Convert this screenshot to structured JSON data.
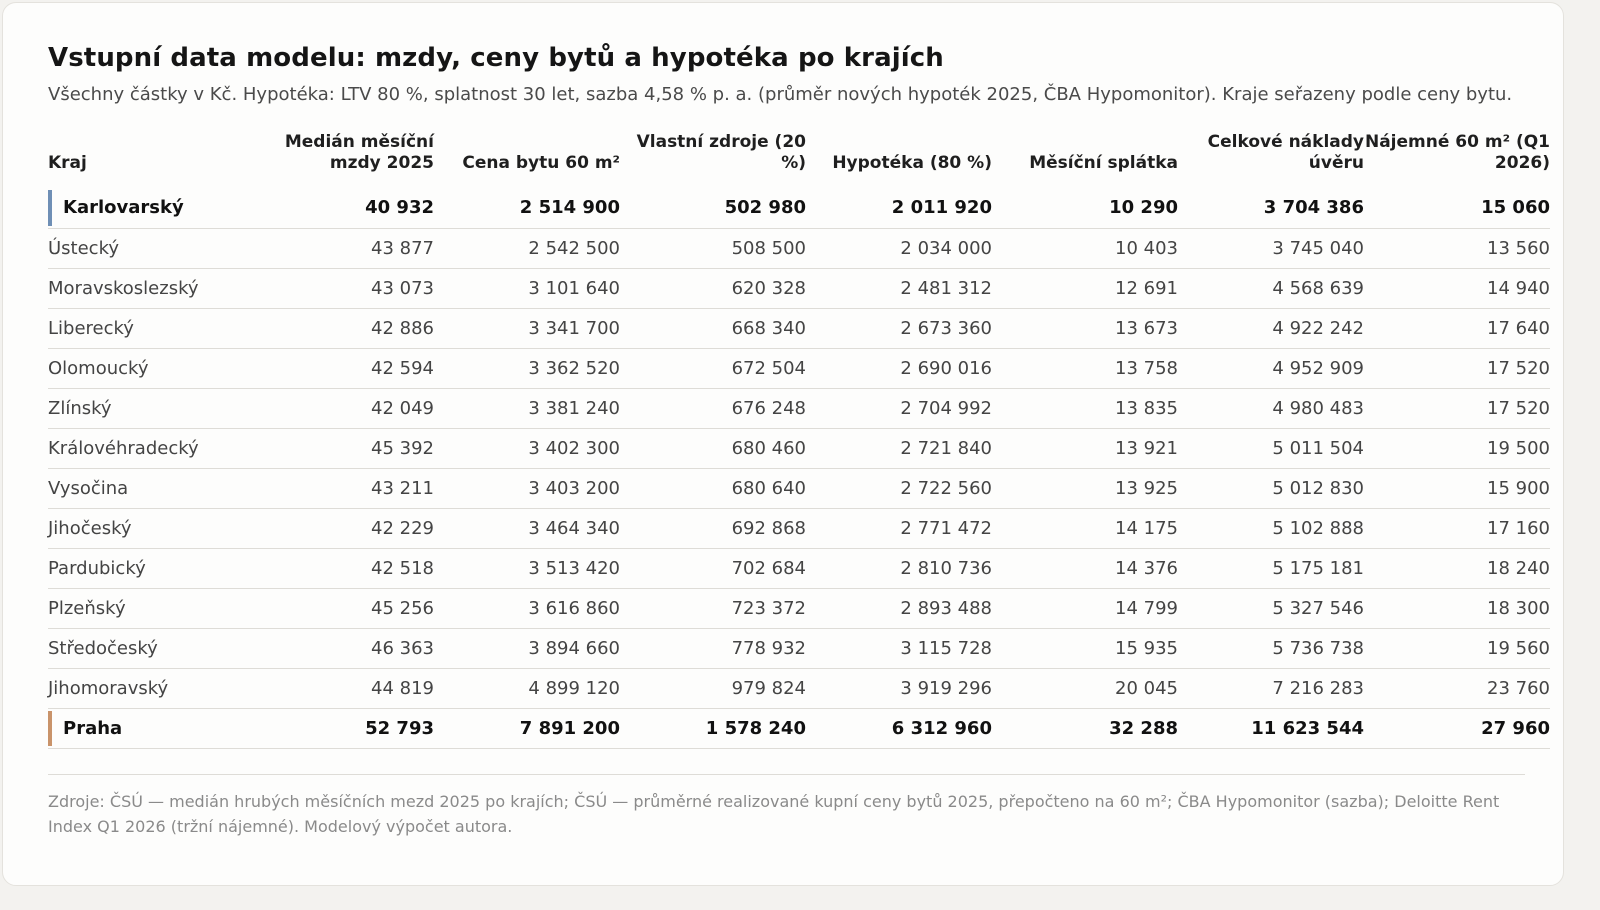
{
  "title": "Vstupní data modelu: mzdy, ceny bytů a hypotéka po krajích",
  "subtitle": "Všechny částky v Kč. Hypotéka: LTV 80 %, splatnost 30 let, sazba 4,58 % p. a. (průměr nových hypoték 2025, ČBA Hypomonitor). Kraje seřazeny podle ceny bytu.",
  "colors": {
    "accent_low": "#6f8fb5",
    "accent_high": "#c9936a"
  },
  "table": {
    "headers": [
      "Kraj",
      "Medián měsíční mzdy 2025",
      "Cena bytu 60 m²",
      "Vlastní zdroje (20 %)",
      "Hypotéka (80 %)",
      "Měsíční splátka",
      "Celkové náklady úvěru",
      "Nájemné 60 m² (Q1 2026)"
    ],
    "rows": [
      {
        "kraj": "Karlovarský",
        "mzda": "40 932",
        "cena": "2 514 900",
        "zdroje": "502 980",
        "hypoteka": "2 011 920",
        "splatka": "10 290",
        "naklady": "3 704 386",
        "najem": "15 060",
        "highlight": "low"
      },
      {
        "kraj": "Ústecký",
        "mzda": "43 877",
        "cena": "2 542 500",
        "zdroje": "508 500",
        "hypoteka": "2 034 000",
        "splatka": "10 403",
        "naklady": "3 745 040",
        "najem": "13 560"
      },
      {
        "kraj": "Moravskoslezský",
        "mzda": "43 073",
        "cena": "3 101 640",
        "zdroje": "620 328",
        "hypoteka": "2 481 312",
        "splatka": "12 691",
        "naklady": "4 568 639",
        "najem": "14 940"
      },
      {
        "kraj": "Liberecký",
        "mzda": "42 886",
        "cena": "3 341 700",
        "zdroje": "668 340",
        "hypoteka": "2 673 360",
        "splatka": "13 673",
        "naklady": "4 922 242",
        "najem": "17 640"
      },
      {
        "kraj": "Olomoucký",
        "mzda": "42 594",
        "cena": "3 362 520",
        "zdroje": "672 504",
        "hypoteka": "2 690 016",
        "splatka": "13 758",
        "naklady": "4 952 909",
        "najem": "17 520"
      },
      {
        "kraj": "Zlínský",
        "mzda": "42 049",
        "cena": "3 381 240",
        "zdroje": "676 248",
        "hypoteka": "2 704 992",
        "splatka": "13 835",
        "naklady": "4 980 483",
        "najem": "17 520"
      },
      {
        "kraj": "Královéhradecký",
        "mzda": "45 392",
        "cena": "3 402 300",
        "zdroje": "680 460",
        "hypoteka": "2 721 840",
        "splatka": "13 921",
        "naklady": "5 011 504",
        "najem": "19 500"
      },
      {
        "kraj": "Vysočina",
        "mzda": "43 211",
        "cena": "3 403 200",
        "zdroje": "680 640",
        "hypoteka": "2 722 560",
        "splatka": "13 925",
        "naklady": "5 012 830",
        "najem": "15 900"
      },
      {
        "kraj": "Jihočeský",
        "mzda": "42 229",
        "cena": "3 464 340",
        "zdroje": "692 868",
        "hypoteka": "2 771 472",
        "splatka": "14 175",
        "naklady": "5 102 888",
        "najem": "17 160"
      },
      {
        "kraj": "Pardubický",
        "mzda": "42 518",
        "cena": "3 513 420",
        "zdroje": "702 684",
        "hypoteka": "2 810 736",
        "splatka": "14 376",
        "naklady": "5 175 181",
        "najem": "18 240"
      },
      {
        "kraj": "Plzeňský",
        "mzda": "45 256",
        "cena": "3 616 860",
        "zdroje": "723 372",
        "hypoteka": "2 893 488",
        "splatka": "14 799",
        "naklady": "5 327 546",
        "najem": "18 300"
      },
      {
        "kraj": "Středočeský",
        "mzda": "46 363",
        "cena": "3 894 660",
        "zdroje": "778 932",
        "hypoteka": "3 115 728",
        "splatka": "15 935",
        "naklady": "5 736 738",
        "najem": "19 560"
      },
      {
        "kraj": "Jihomoravský",
        "mzda": "44 819",
        "cena": "4 899 120",
        "zdroje": "979 824",
        "hypoteka": "3 919 296",
        "splatka": "20 045",
        "naklady": "7 216 283",
        "najem": "23 760"
      },
      {
        "kraj": "Praha",
        "mzda": "52 793",
        "cena": "7 891 200",
        "zdroje": "1 578 240",
        "hypoteka": "6 312 960",
        "splatka": "32 288",
        "naklady": "11 623 544",
        "najem": "27 960",
        "highlight": "high"
      }
    ]
  },
  "footnote": "Zdroje: ČSÚ — medián hrubých měsíčních mezd 2025 po krajích; ČSÚ — průměrné realizované kupní ceny bytů 2025, přepočteno na 60 m²; ČBA Hypomonitor (sazba); Deloitte Rent Index Q1 2026 (tržní nájemné). Modelový výpočet autora."
}
